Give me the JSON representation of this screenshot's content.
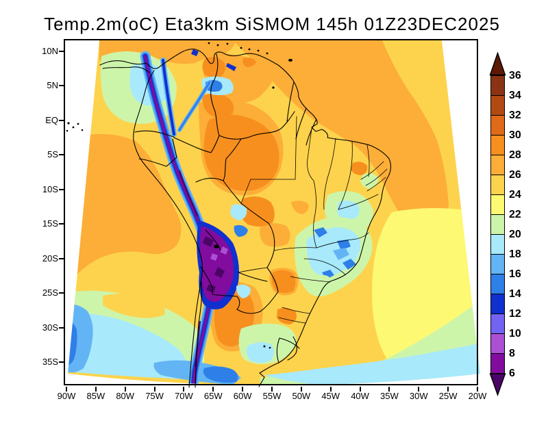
{
  "title": "Temp.2m(oC) Eta3km SiSMOM 145h 01Z23DEC2025",
  "map": {
    "y_axis": {
      "labels": [
        "10N",
        "5N",
        "EQ",
        "5S",
        "10S",
        "15S",
        "20S",
        "25S",
        "30S",
        "35S"
      ]
    },
    "x_axis": {
      "labels": [
        "90W",
        "85W",
        "80W",
        "75W",
        "70W",
        "65W",
        "60W",
        "55W",
        "50W",
        "45W",
        "40W",
        "35W",
        "30W",
        "25W",
        "20W"
      ]
    }
  },
  "colorbar": {
    "tick_labels": [
      "36",
      "34",
      "32",
      "30",
      "28",
      "26",
      "24",
      "22",
      "20",
      "18",
      "16",
      "14",
      "12",
      "10",
      "8",
      "6"
    ],
    "cell_colors": [
      "#8a3413",
      "#b14a12",
      "#e06a18",
      "#f78f1e",
      "#fcae38",
      "#fdd34d",
      "#fdf972",
      "#cdf5aa",
      "#a8e9fb",
      "#63b4f5",
      "#2f7fe8",
      "#1030d0",
      "#7263f2",
      "#ab50d5",
      "#810c9e"
    ],
    "arrow_top_color": "#5c1a04",
    "arrow_bottom_color": "#4b0566"
  },
  "chart_data": {
    "type": "heatmap",
    "title": "Temp.2m(oC) Eta3km SiSMOM 145h 01Z23DEC2025",
    "variable": "Temp.2m(oC)",
    "model": "Eta3km SiSMOM",
    "forecast_hour": "145h",
    "valid_time": "01Z23DEC2025",
    "levels_c": [
      6,
      8,
      10,
      12,
      14,
      16,
      18,
      20,
      22,
      24,
      26,
      28,
      30,
      32,
      34,
      36
    ],
    "palette": [
      "#5c1a04",
      "#8a3413",
      "#b14a12",
      "#e06a18",
      "#f78f1e",
      "#fcae38",
      "#fdd34d",
      "#fdf972",
      "#cdf5aa",
      "#a8e9fb",
      "#63b4f5",
      "#2f7fe8",
      "#1030d0",
      "#7263f2",
      "#ab50d5",
      "#810c9e",
      "#4b0566"
    ],
    "lat_ticks": [
      "10N",
      "5N",
      "EQ",
      "5S",
      "10S",
      "15S",
      "20S",
      "25S",
      "30S",
      "35S"
    ],
    "lon_ticks": [
      "90W",
      "85W",
      "80W",
      "75W",
      "70W",
      "65W",
      "60W",
      "55W",
      "50W",
      "45W",
      "40W",
      "35W",
      "30W",
      "25W",
      "20W"
    ],
    "notable_features": [
      "Andes cordillera cold stripe 6-14C (purple/blue) from Colombia to southern Chile",
      "Altiplano wide cold core below 8C",
      "Amazon and Caribbean oceans 26-28C (orange)",
      "Central Brazil 24-26C (golden yellow)",
      "Southeast Brazil highlands cool patches 16-20C (blue/cyan)",
      "Southern oceans cooling to 14-20C (green/cyan/blue) south of 28S"
    ]
  }
}
